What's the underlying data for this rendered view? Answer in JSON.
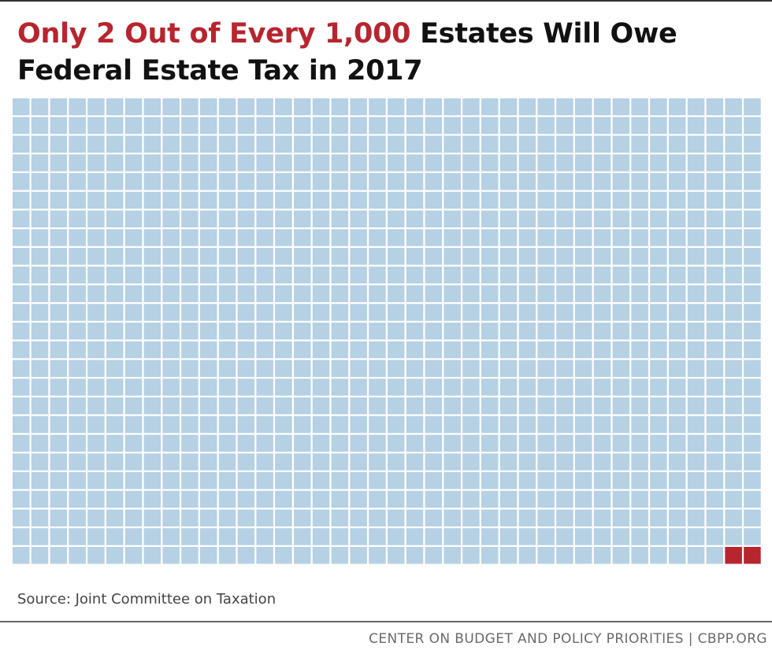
{
  "chart_data": {
    "type": "waffle",
    "title_highlight": "Only 2 Out of Every 1,000",
    "title_rest": " Estates Will Owe Federal Estate Tax in 2017",
    "total": 1000,
    "highlighted": 2,
    "grid": {
      "columns": 40,
      "rows": 25
    },
    "colors": {
      "base": "#b6d0e4",
      "highlight": "#b7252f"
    }
  },
  "source": "Source: Joint Committee on Taxation",
  "credit": "CENTER ON BUDGET AND POLICY PRIORITIES | CBPP.ORG"
}
